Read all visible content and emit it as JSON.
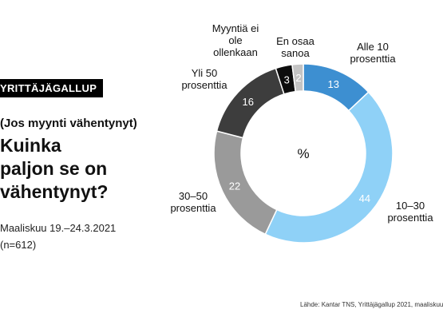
{
  "header": {
    "badge": "YRITTÄJÄGALLUP",
    "condition": "(Jos myynti vähentynyt)",
    "question_lines": [
      "Kuinka",
      "paljon se on",
      "vähentynyt?"
    ],
    "date": "Maaliskuu 19.–24.3.2021",
    "sample": "(n=612)"
  },
  "footer": {
    "source": "Lähde: Kantar TNS, Yrittäjägallup 2021, maaliskuu"
  },
  "colors": {
    "alle10": "#3d8fd1",
    "p10_30": "#8fd1f7",
    "p30_50": "#9a9a9a",
    "yli50": "#3d3d3d",
    "ei_ollenkaan": "#0d0d0d",
    "en_osaa": "#c4c4c4"
  },
  "chart_data": {
    "type": "pie",
    "variant": "donut",
    "center_label": "%",
    "title": "Kuinka paljon se on vähentynyt?",
    "slices": [
      {
        "key": "alle10",
        "label_lines": [
          "Alle 10",
          "prosenttia"
        ],
        "value": 13,
        "value_color": "#ffffff",
        "label_color": "#111111"
      },
      {
        "key": "p10_30",
        "label_lines": [
          "10–30",
          "prosenttia"
        ],
        "value": 44,
        "value_color": "#ffffff",
        "label_color": "#111111"
      },
      {
        "key": "p30_50",
        "label_lines": [
          "30–50",
          "prosenttia"
        ],
        "value": 22,
        "value_color": "#ffffff",
        "label_color": "#111111"
      },
      {
        "key": "yli50",
        "label_lines": [
          "Yli 50",
          "prosenttia"
        ],
        "value": 16,
        "value_color": "#ffffff",
        "label_color": "#111111"
      },
      {
        "key": "ei_ollenkaan",
        "label_lines": [
          "Myyntiä ei",
          "ole",
          "ollenkaan"
        ],
        "value": 3,
        "value_color": "#ffffff",
        "label_color": "#111111"
      },
      {
        "key": "en_osaa",
        "label_lines": [
          "En osaa",
          "sanoa"
        ],
        "value": 2,
        "value_color": "#ffffff",
        "label_color": "#8a8a8a"
      }
    ]
  }
}
